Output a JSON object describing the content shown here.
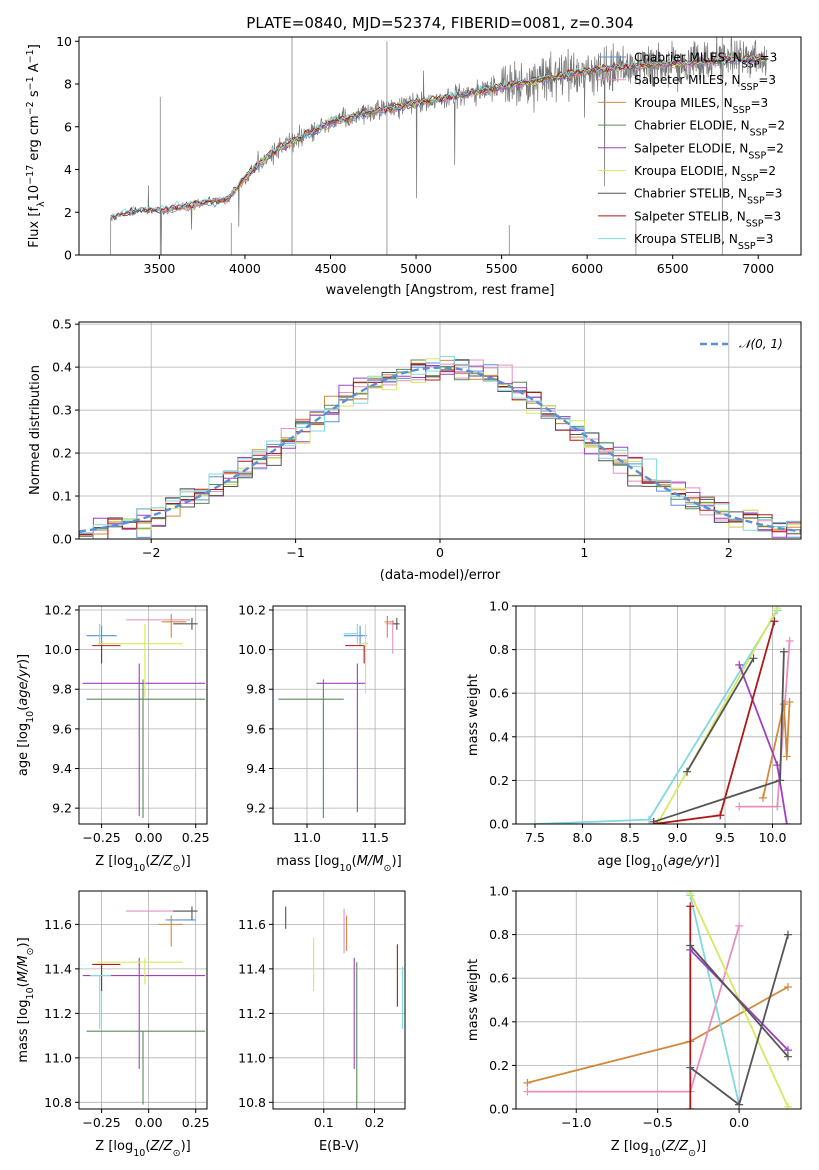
{
  "figure": {
    "title": "PLATE=0840, MJD=52374, FIBERID=0081, z=0.304"
  },
  "series_styles": [
    {
      "name": "Chabrier MILES, N_SSP=3",
      "label_main": "Chabrier MILES, N",
      "label_sub": "SSP",
      "label_end": "=3",
      "color": "#5b8fd6"
    },
    {
      "name": "Salpeter MILES, N_SSP=3",
      "label_main": "Salpeter MILES, N",
      "label_sub": "SSP",
      "label_end": "=3",
      "color": "#e88fc0"
    },
    {
      "name": "Kroupa MILES, N_SSP=3",
      "label_main": "Kroupa MILES, N",
      "label_sub": "SSP",
      "label_end": "=3",
      "color": "#d08a3c"
    },
    {
      "name": "Chabrier ELODIE, N_SSP=2",
      "label_main": "Chabrier ELODIE, N",
      "label_sub": "SSP",
      "label_end": "=2",
      "color": "#5a8a5a"
    },
    {
      "name": "Salpeter ELODIE, N_SSP=2",
      "label_main": "Salpeter ELODIE, N",
      "label_sub": "SSP",
      "label_end": "=2",
      "color": "#a040c0"
    },
    {
      "name": "Kroupa ELODIE, N_SSP=2",
      "label_main": "Kroupa ELODIE, N",
      "label_sub": "SSP",
      "label_end": "=2",
      "color": "#d8e860"
    },
    {
      "name": "Chabrier STELIB, N_SSP=3",
      "label_main": "Chabrier STELIB, N",
      "label_sub": "SSP",
      "label_end": "=3",
      "color": "#555555"
    },
    {
      "name": "Salpeter STELIB, N_SSP=3",
      "label_main": "Salpeter STELIB, N",
      "label_sub": "SSP",
      "label_end": "=3",
      "color": "#b01818"
    },
    {
      "name": "Kroupa STELIB, N_SSP=3",
      "label_main": "Kroupa STELIB, N",
      "label_sub": "SSP",
      "label_end": "=3",
      "color": "#80d8e0"
    }
  ],
  "chart_data": [
    {
      "id": "spectrum",
      "type": "line",
      "xlabel": "wavelength [Angstrom, rest frame]",
      "ylabel": "Flux [f_λ 10^-17 erg cm^-2 s^-1 A^-1]",
      "ylabel_parts": {
        "a": "Flux [f",
        "b": "λ",
        "c": "10",
        "d": "−17",
        "e": " erg cm",
        "f": "−2",
        "g": " s",
        "h": "−1",
        "i": " A",
        "j": "−1",
        "k": "]"
      },
      "xlim": [
        3030,
        7250
      ],
      "ylim": [
        0,
        10.2
      ],
      "xticks": [
        3500,
        4000,
        4500,
        5000,
        5500,
        6000,
        6500,
        7000
      ],
      "yticks": [
        0,
        2,
        4,
        6,
        8,
        10
      ],
      "model_x": [
        3200,
        3300,
        3400,
        3500,
        3600,
        3700,
        3800,
        3900,
        4000,
        4100,
        4200,
        4300,
        4400,
        4500,
        4600,
        4700,
        4800,
        4900,
        5000,
        5200,
        5400,
        5600,
        5800,
        6000,
        6200,
        6400,
        6600,
        6800,
        7000,
        7050
      ],
      "model_y": [
        1.7,
        1.95,
        2.1,
        2.05,
        2.2,
        2.35,
        2.5,
        2.6,
        3.6,
        4.4,
        5.0,
        5.4,
        5.8,
        6.2,
        6.4,
        6.6,
        6.8,
        6.9,
        7.1,
        7.4,
        7.7,
        8.0,
        8.3,
        8.6,
        8.8,
        8.9,
        9.0,
        9.1,
        9.2,
        9.15
      ],
      "data_x_range": [
        3215,
        7050
      ],
      "legend": "upper-right"
    },
    {
      "id": "residual-histogram",
      "type": "histogram",
      "xlabel": "(data-model)/error",
      "ylabel": "Normed distribution",
      "xlim": [
        -2.5,
        2.5
      ],
      "ylim": [
        0,
        0.505
      ],
      "xticks": [
        -2,
        -1,
        0,
        1,
        2
      ],
      "xtick_labels": [
        "−2",
        "−1",
        "0",
        "1",
        "2"
      ],
      "yticks": [
        0.0,
        0.1,
        0.2,
        0.3,
        0.4,
        0.5
      ],
      "ytick_labels": [
        "0.0",
        "0.1",
        "0.2",
        "0.3",
        "0.4",
        "0.5"
      ],
      "bin_width": 0.1,
      "reference_curve": {
        "name": "N(0,1)",
        "label": "𝒩(0, 1)",
        "color": "#5b8fd6",
        "style": "dashed"
      },
      "legend": "upper-right"
    },
    {
      "id": "age-vs-Z",
      "type": "errorbar",
      "xlabel": "Z [log10(Z/Z_sun)]",
      "ylabel": "age [log10(age/yr)]",
      "xlim": [
        -0.37,
        0.31
      ],
      "ylim": [
        9.12,
        10.22
      ],
      "xticks": [
        -0.25,
        0.0,
        0.25
      ],
      "xtick_labels": [
        "−0.25",
        "0.00",
        "0.25"
      ],
      "yticks": [
        9.2,
        9.4,
        9.6,
        9.8,
        10.0,
        10.2
      ],
      "ytick_labels": [
        "9.2",
        "9.4",
        "9.6",
        "9.8",
        "10.0",
        "10.2"
      ],
      "points": [
        {
          "series": 0,
          "x": -0.25,
          "xerr": [
            0.08,
            0.08
          ],
          "y": 10.07,
          "yerr": [
            0.05,
            0.05
          ]
        },
        {
          "series": 1,
          "x": 0.05,
          "xerr": [
            0.17,
            0.17
          ],
          "y": 10.15,
          "yerr": [
            0.0,
            0.0
          ]
        },
        {
          "series": 2,
          "x": 0.12,
          "xerr": [
            0.05,
            0.08
          ],
          "y": 10.14,
          "yerr": [
            0.08,
            0.04
          ]
        },
        {
          "series": 3,
          "x": -0.03,
          "xerr": [
            0.3,
            0.33
          ],
          "y": 9.75,
          "yerr": [
            0.6,
            0.1
          ]
        },
        {
          "series": 4,
          "x": -0.05,
          "xerr": [
            0.3,
            0.35
          ],
          "y": 9.83,
          "yerr": [
            0.67,
            0.1
          ]
        },
        {
          "series": 5,
          "x": -0.02,
          "xerr": [
            0.25,
            0.2
          ],
          "y": 10.03,
          "yerr": [
            0.27,
            0.1
          ]
        },
        {
          "series": 6,
          "x": 0.23,
          "xerr": [
            0.1,
            0.03
          ],
          "y": 10.13,
          "yerr": [
            0.03,
            0.03
          ]
        },
        {
          "series": 7,
          "x": -0.25,
          "xerr": [
            0.05,
            0.1
          ],
          "y": 10.02,
          "yerr": [
            0.09,
            0.0
          ]
        },
        {
          "series": 8,
          "x": -0.26,
          "xerr": [
            0.0,
            0.0
          ],
          "y": 10.08,
          "yerr": [
            0.05,
            0.05
          ]
        }
      ]
    },
    {
      "id": "age-vs-mass",
      "type": "errorbar",
      "xlabel": "mass [log10(M/M_sun)]",
      "ylabel": "",
      "xlim": [
        10.75,
        11.72
      ],
      "ylim": [
        9.12,
        10.22
      ],
      "xticks": [
        11.0,
        11.5
      ],
      "xtick_labels": [
        "11.0",
        "11.5"
      ],
      "yticks": [
        9.2,
        9.4,
        9.6,
        9.8,
        10.0,
        10.2
      ],
      "ytick_labels": [
        "9.2",
        "9.4",
        "9.6",
        "9.8",
        "10.0",
        "10.2"
      ],
      "points": [
        {
          "series": 0,
          "x": 11.39,
          "xerr": [
            0.12,
            0.05
          ],
          "y": 10.07,
          "yerr": [
            0.05,
            0.05
          ]
        },
        {
          "series": 1,
          "x": 11.63,
          "xerr": [
            0.05,
            0.03
          ],
          "y": 10.13,
          "yerr": [
            0.15,
            0.02
          ]
        },
        {
          "series": 2,
          "x": 11.59,
          "xerr": [
            0.02,
            0.05
          ],
          "y": 10.14,
          "yerr": [
            0.08,
            0.03
          ]
        },
        {
          "series": 3,
          "x": 11.12,
          "xerr": [
            0.33,
            0.15
          ],
          "y": 9.75,
          "yerr": [
            0.6,
            0.1
          ]
        },
        {
          "series": 4,
          "x": 11.37,
          "xerr": [
            0.3,
            0.06
          ],
          "y": 9.83,
          "yerr": [
            0.65,
            0.1
          ]
        },
        {
          "series": 5,
          "x": 11.43,
          "xerr": [
            0.05,
            0.02
          ],
          "y": 10.03,
          "yerr": [
            0.25,
            0.1
          ]
        },
        {
          "series": 6,
          "x": 11.66,
          "xerr": [
            0.03,
            0.02
          ],
          "y": 10.13,
          "yerr": [
            0.03,
            0.03
          ]
        },
        {
          "series": 7,
          "x": 11.42,
          "xerr": [
            0.14,
            0.0
          ],
          "y": 10.02,
          "yerr": [
            0.09,
            0.0
          ]
        },
        {
          "series": 8,
          "x": 11.37,
          "xerr": [
            0.1,
            0.0
          ],
          "y": 10.08,
          "yerr": [
            0.05,
            0.05
          ]
        }
      ]
    },
    {
      "id": "weight-vs-age",
      "type": "line",
      "xlabel": "age [log10(age/yr)]",
      "ylabel": "mass weight",
      "xlim": [
        7.3,
        10.3
      ],
      "ylim": [
        0,
        1.0
      ],
      "xticks": [
        7.5,
        8.0,
        8.5,
        9.0,
        9.5,
        10.0
      ],
      "xtick_labels": [
        "7.5",
        "8.0",
        "8.5",
        "9.0",
        "9.5",
        "10.0"
      ],
      "yticks": [
        0.0,
        0.2,
        0.4,
        0.6,
        0.8,
        1.0
      ],
      "ytick_labels": [
        "0.0",
        "0.2",
        "0.4",
        "0.6",
        "0.8",
        "1.0"
      ],
      "series": [
        {
          "style": 8,
          "x": [
            7.5,
            8.7,
            10.05
          ],
          "y": [
            0.0,
            0.02,
            0.98
          ]
        },
        {
          "style": 5,
          "x": [
            8.8,
            9.1,
            10.05
          ],
          "y": [
            0.01,
            0.24,
            0.99
          ]
        },
        {
          "style": 1,
          "x": [
            9.65,
            10.05,
            10.18
          ],
          "y": [
            0.08,
            0.08,
            0.84
          ]
        },
        {
          "style": 2,
          "x": [
            9.9,
            10.12,
            10.15,
            10.18
          ],
          "y": [
            0.12,
            0.55,
            0.31,
            0.56
          ]
        },
        {
          "style": 4,
          "x": [
            9.65,
            10.05,
            10.15
          ],
          "y": [
            0.73,
            0.27,
            0.0
          ]
        },
        {
          "style": 6,
          "x": [
            8.75,
            10.08,
            10.12
          ],
          "y": [
            0.01,
            0.2,
            0.79
          ]
        },
        {
          "style": 6,
          "x": [
            9.1,
            9.8
          ],
          "y": [
            0.24,
            0.76
          ]
        },
        {
          "style": 7,
          "x": [
            8.75,
            9.45,
            10.02
          ],
          "y": [
            0.0,
            0.04,
            0.93
          ]
        }
      ]
    },
    {
      "id": "mass-vs-Z",
      "type": "errorbar",
      "xlabel": "Z [log10(Z/Z_sun)]",
      "ylabel": "mass [log10(M/M_sun)]",
      "xlim": [
        -0.37,
        0.31
      ],
      "ylim": [
        10.77,
        11.75
      ],
      "xticks": [
        -0.25,
        0.0,
        0.25
      ],
      "xtick_labels": [
        "−0.25",
        "0.00",
        "0.25"
      ],
      "yticks": [
        10.8,
        11.0,
        11.2,
        11.4,
        11.6
      ],
      "ytick_labels": [
        "10.8",
        "11.0",
        "11.2",
        "11.4",
        "11.6"
      ],
      "points": [
        {
          "series": 0,
          "x": 0.17,
          "xerr": [
            0.08,
            0.08
          ],
          "y": 11.62,
          "yerr": [
            0.0,
            0.0
          ]
        },
        {
          "series": 1,
          "x": 0.05,
          "xerr": [
            0.17,
            0.17
          ],
          "y": 11.66,
          "yerr": [
            0.0,
            0.0
          ]
        },
        {
          "series": 2,
          "x": 0.12,
          "xerr": [
            0.07,
            0.06
          ],
          "y": 11.6,
          "yerr": [
            0.1,
            0.04
          ]
        },
        {
          "series": 3,
          "x": -0.03,
          "xerr": [
            0.3,
            0.33
          ],
          "y": 11.12,
          "yerr": [
            0.33,
            0.0
          ]
        },
        {
          "series": 4,
          "x": -0.05,
          "xerr": [
            0.3,
            0.35
          ],
          "y": 11.37,
          "yerr": [
            0.42,
            0.08
          ]
        },
        {
          "series": 5,
          "x": -0.02,
          "xerr": [
            0.25,
            0.2
          ],
          "y": 11.43,
          "yerr": [
            0.1,
            0.02
          ]
        },
        {
          "series": 6,
          "x": 0.23,
          "xerr": [
            0.1,
            0.03
          ],
          "y": 11.66,
          "yerr": [
            0.04,
            0.02
          ]
        },
        {
          "series": 7,
          "x": -0.25,
          "xerr": [
            0.05,
            0.1
          ],
          "y": 11.42,
          "yerr": [
            0.12,
            0.0
          ]
        },
        {
          "series": 8,
          "x": -0.26,
          "xerr": [
            0.05,
            0.06
          ],
          "y": 11.37,
          "yerr": [
            0.24,
            0.0
          ]
        }
      ]
    },
    {
      "id": "mass-vs-EBV",
      "type": "errorbar",
      "xlabel": "E(B-V)",
      "ylabel": "",
      "xlim": [
        0.0,
        0.26
      ],
      "ylim": [
        10.77,
        11.75
      ],
      "xticks": [
        0.1,
        0.2
      ],
      "xtick_labels": [
        "0.1",
        "0.2"
      ],
      "yticks": [
        10.8,
        11.0,
        11.2,
        11.4,
        11.6
      ],
      "ytick_labels": [
        "10.8",
        "11.0",
        "11.2",
        "11.4",
        "11.6"
      ],
      "points": [
        {
          "series": 6,
          "x": 0.025,
          "xerr": [
            0,
            0
          ],
          "y": 11.63,
          "yerr": [
            0.05,
            0.05
          ]
        },
        {
          "series": 5,
          "x": 0.08,
          "xerr": [
            0,
            0
          ],
          "y": 11.42,
          "yerr": [
            0.12,
            0.12
          ]
        },
        {
          "series": 1,
          "x": 0.14,
          "xerr": [
            0,
            0
          ],
          "y": 11.57,
          "yerr": [
            0.1,
            0.1
          ]
        },
        {
          "series": 2,
          "x": 0.145,
          "xerr": [
            0,
            0
          ],
          "y": 11.56,
          "yerr": [
            0.08,
            0.08
          ]
        },
        {
          "series": 4,
          "x": 0.16,
          "xerr": [
            0,
            0
          ],
          "y": 11.2,
          "yerr": [
            0.25,
            0.25
          ]
        },
        {
          "series": 3,
          "x": 0.165,
          "xerr": [
            0,
            0
          ],
          "y": 11.1,
          "yerr": [
            0.33,
            0.33
          ]
        },
        {
          "series": 7,
          "x": 0.245,
          "xerr": [
            0,
            0
          ],
          "y": 11.37,
          "yerr": [
            0.14,
            0.14
          ]
        },
        {
          "series": 8,
          "x": 0.255,
          "xerr": [
            0,
            0
          ],
          "y": 11.27,
          "yerr": [
            0.14,
            0.14
          ]
        }
      ]
    },
    {
      "id": "weight-vs-Z",
      "type": "line",
      "xlabel": "Z [log10(Z/Z_sun)]",
      "ylabel": "mass weight",
      "xlim": [
        -1.37,
        0.38
      ],
      "ylim": [
        0,
        1.0
      ],
      "xticks": [
        -1.0,
        -0.5,
        0.0
      ],
      "xtick_labels": [
        "−1.0",
        "−0.5",
        "0.0"
      ],
      "yticks": [
        0.0,
        0.2,
        0.4,
        0.6,
        0.8,
        1.0
      ],
      "ytick_labels": [
        "0.0",
        "0.2",
        "0.4",
        "0.6",
        "0.8",
        "1.0"
      ],
      "series": [
        {
          "style": 2,
          "x": [
            -1.3,
            -0.3,
            0.3
          ],
          "y": [
            0.12,
            0.31,
            0.56
          ]
        },
        {
          "style": 1,
          "x": [
            -1.3,
            -0.3,
            0.0
          ],
          "y": [
            0.08,
            0.08,
            0.84
          ]
        },
        {
          "style": 8,
          "x": [
            -0.3,
            0.0
          ],
          "y": [
            0.98,
            0.02
          ]
        },
        {
          "style": 5,
          "x": [
            -0.3,
            0.3
          ],
          "y": [
            0.99,
            0.01
          ]
        },
        {
          "style": 7,
          "x": [
            -0.3,
            -0.3
          ],
          "y": [
            0.0,
            0.93
          ]
        },
        {
          "style": 4,
          "x": [
            -0.3,
            0.3
          ],
          "y": [
            0.73,
            0.27
          ]
        },
        {
          "style": 6,
          "x": [
            -0.3,
            0.3
          ],
          "y": [
            0.75,
            0.24
          ]
        },
        {
          "style": 6,
          "x": [
            -0.3,
            0.0,
            0.3
          ],
          "y": [
            0.19,
            0.02,
            0.8
          ]
        }
      ]
    }
  ]
}
